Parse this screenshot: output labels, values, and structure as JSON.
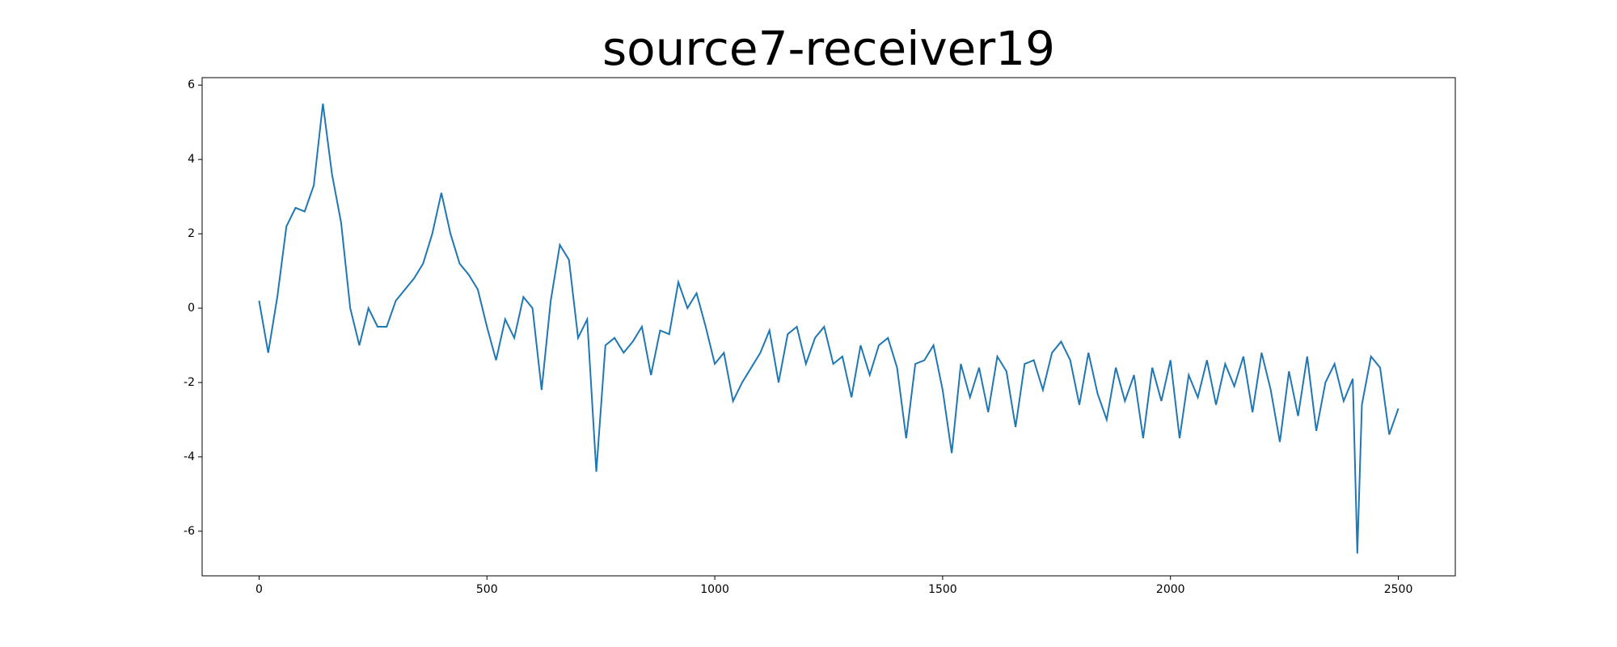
{
  "chart_data": {
    "type": "line",
    "title": "source7-receiver19",
    "x": [
      0,
      20,
      40,
      60,
      80,
      100,
      120,
      140,
      160,
      180,
      200,
      220,
      240,
      260,
      280,
      300,
      320,
      340,
      360,
      380,
      400,
      420,
      440,
      460,
      480,
      500,
      520,
      540,
      560,
      580,
      600,
      620,
      640,
      660,
      680,
      700,
      720,
      740,
      760,
      780,
      800,
      820,
      840,
      860,
      880,
      900,
      920,
      940,
      960,
      980,
      1000,
      1020,
      1040,
      1060,
      1080,
      1100,
      1120,
      1140,
      1160,
      1180,
      1200,
      1220,
      1240,
      1260,
      1280,
      1300,
      1320,
      1340,
      1360,
      1380,
      1400,
      1420,
      1440,
      1460,
      1480,
      1500,
      1520,
      1540,
      1560,
      1580,
      1600,
      1620,
      1640,
      1660,
      1680,
      1700,
      1720,
      1740,
      1760,
      1780,
      1800,
      1820,
      1840,
      1860,
      1880,
      1900,
      1920,
      1940,
      1960,
      1980,
      2000,
      2020,
      2040,
      2060,
      2080,
      2100,
      2120,
      2140,
      2160,
      2180,
      2200,
      2220,
      2240,
      2260,
      2280,
      2300,
      2320,
      2340,
      2360,
      2380,
      2400,
      2410,
      2420,
      2440,
      2460,
      2480,
      2500
    ],
    "series": [
      {
        "color": "#1f77b4",
        "values": [
          0.2,
          -1.2,
          0.3,
          2.2,
          2.7,
          2.6,
          3.3,
          5.5,
          3.6,
          2.3,
          0.0,
          -1.0,
          0.0,
          -0.5,
          -0.5,
          0.2,
          0.5,
          0.8,
          1.2,
          2.0,
          3.1,
          2.0,
          1.2,
          0.9,
          0.5,
          -0.5,
          -1.4,
          -0.3,
          -0.8,
          0.3,
          0.0,
          -2.2,
          0.2,
          1.7,
          1.3,
          -0.8,
          -0.3,
          -4.4,
          -1.0,
          -0.8,
          -1.2,
          -0.9,
          -0.5,
          -1.8,
          -0.6,
          -0.7,
          0.7,
          0.0,
          0.4,
          -0.5,
          -1.5,
          -1.2,
          -2.5,
          -2.0,
          -1.6,
          -1.2,
          -0.6,
          -2.0,
          -0.7,
          -0.5,
          -1.5,
          -0.8,
          -0.5,
          -1.5,
          -1.3,
          -2.4,
          -1.0,
          -1.8,
          -1.0,
          -0.8,
          -1.6,
          -3.5,
          -1.5,
          -1.4,
          -1.0,
          -2.2,
          -3.9,
          -1.5,
          -2.4,
          -1.6,
          -2.8,
          -1.3,
          -1.7,
          -3.2,
          -1.5,
          -1.4,
          -2.2,
          -1.2,
          -0.9,
          -1.4,
          -2.6,
          -1.2,
          -2.3,
          -3.0,
          -1.6,
          -2.5,
          -1.8,
          -3.5,
          -1.6,
          -2.5,
          -1.4,
          -3.5,
          -1.8,
          -2.4,
          -1.4,
          -2.6,
          -1.5,
          -2.1,
          -1.3,
          -2.8,
          -1.2,
          -2.2,
          -3.6,
          -1.7,
          -2.9,
          -1.3,
          -3.3,
          -2.0,
          -1.5,
          -2.5,
          -1.9,
          -6.6,
          -2.6,
          -1.3,
          -1.6,
          -3.4,
          -2.7
        ]
      }
    ],
    "xlim": [
      -125,
      2625
    ],
    "xticks": [
      0,
      500,
      1000,
      1500,
      2000,
      2500
    ],
    "ylim": [
      -7.2,
      6.2
    ],
    "yticks": [
      -6,
      -4,
      -2,
      0,
      2,
      4,
      6
    ]
  }
}
